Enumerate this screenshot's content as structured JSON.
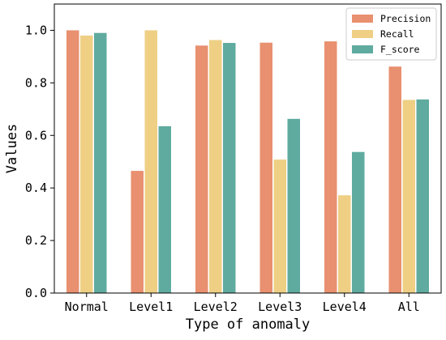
{
  "chart_data": {
    "type": "bar",
    "title": "",
    "xlabel": "Type of anomaly",
    "ylabel": "Values",
    "categories": [
      "Normal",
      "Level1",
      "Level2",
      "Level3",
      "Level4",
      "All"
    ],
    "series": [
      {
        "name": "Precision",
        "color": "#e8906f",
        "values": [
          1.0,
          0.465,
          0.942,
          0.953,
          0.958,
          0.862
        ]
      },
      {
        "name": "Recall",
        "color": "#eecf84",
        "values": [
          0.98,
          1.0,
          0.963,
          0.508,
          0.372,
          0.735
        ]
      },
      {
        "name": "F_score",
        "color": "#5fab9f",
        "values": [
          0.99,
          0.635,
          0.952,
          0.663,
          0.537,
          0.737
        ]
      }
    ],
    "ylim": [
      0,
      1.1
    ],
    "yticks": [
      0.0,
      0.2,
      0.4,
      0.6,
      0.8,
      1.0
    ],
    "ytick_labels": [
      "0.0",
      "0.2",
      "0.4",
      "0.6",
      "0.8",
      "1.0"
    ],
    "grid": false,
    "legend_position": "top-right"
  }
}
